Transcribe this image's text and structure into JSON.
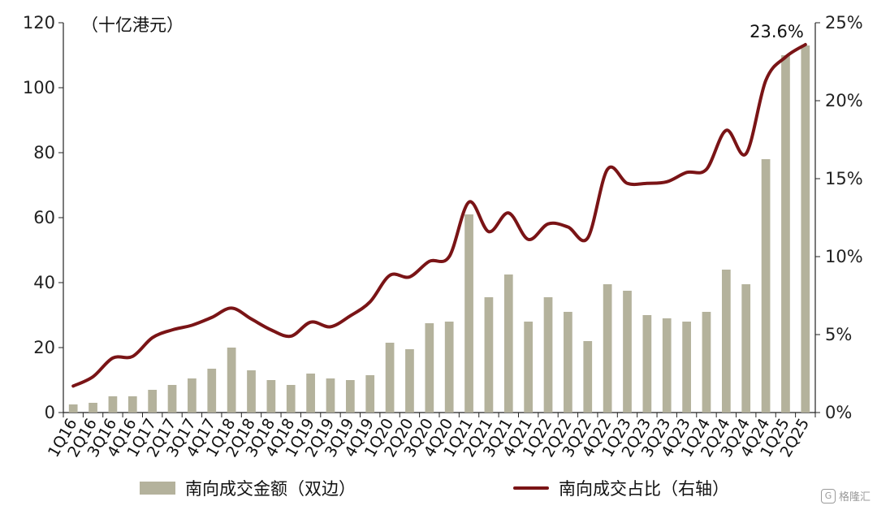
{
  "chart_data": {
    "type": "bar+line",
    "unit_label": "（十亿港元）",
    "categories": [
      "1Q16",
      "2Q16",
      "3Q16",
      "4Q16",
      "1Q17",
      "2Q17",
      "3Q17",
      "4Q17",
      "1Q18",
      "2Q18",
      "3Q18",
      "4Q18",
      "1Q19",
      "2Q19",
      "3Q19",
      "4Q19",
      "1Q20",
      "2Q20",
      "3Q20",
      "4Q20",
      "1Q21",
      "2Q21",
      "3Q21",
      "4Q21",
      "1Q22",
      "2Q22",
      "3Q22",
      "4Q22",
      "1Q23",
      "2Q23",
      "3Q23",
      "4Q23",
      "1Q24",
      "2Q24",
      "3Q24",
      "4Q24",
      "1Q25",
      "2Q25"
    ],
    "series": [
      {
        "name": "南向成交金额（双边）",
        "type": "bar",
        "axis": "left",
        "color": "#b4b29c",
        "values": [
          2.5,
          3,
          5,
          5,
          7,
          8.5,
          10.5,
          13.5,
          20,
          13,
          10,
          8.5,
          12,
          10.5,
          10,
          11.5,
          21.5,
          19.5,
          27.5,
          28,
          61,
          35.5,
          42.5,
          28,
          35.5,
          31,
          22,
          39.5,
          37.5,
          30,
          29,
          28,
          31,
          44,
          39.5,
          78,
          110,
          113
        ]
      },
      {
        "name": "南向成交占比（右轴）",
        "type": "line",
        "axis": "right",
        "color": "#7a1416",
        "values": [
          1.7,
          2.3,
          3.5,
          3.6,
          4.8,
          5.3,
          5.6,
          6.1,
          6.7,
          6.0,
          5.3,
          4.9,
          5.8,
          5.5,
          6.2,
          7.1,
          8.8,
          8.7,
          9.7,
          10.0,
          13.5,
          11.6,
          12.8,
          11.1,
          12.1,
          11.9,
          11.2,
          15.6,
          14.7,
          14.7,
          14.8,
          15.4,
          15.6,
          18.1,
          16.6,
          21.3,
          22.8,
          23.6
        ]
      }
    ],
    "left_axis": {
      "ylim": [
        0,
        120
      ],
      "ticks": [
        0,
        20,
        40,
        60,
        80,
        100,
        120
      ]
    },
    "right_axis": {
      "ylim": [
        0,
        25
      ],
      "ticks": [
        "0%",
        "5%",
        "10%",
        "15%",
        "20%",
        "25%"
      ]
    },
    "annotations": [
      {
        "text": "23.6%"
      }
    ],
    "legend_position": "bottom"
  },
  "watermark": {
    "logo": "G",
    "text": "格隆汇"
  }
}
